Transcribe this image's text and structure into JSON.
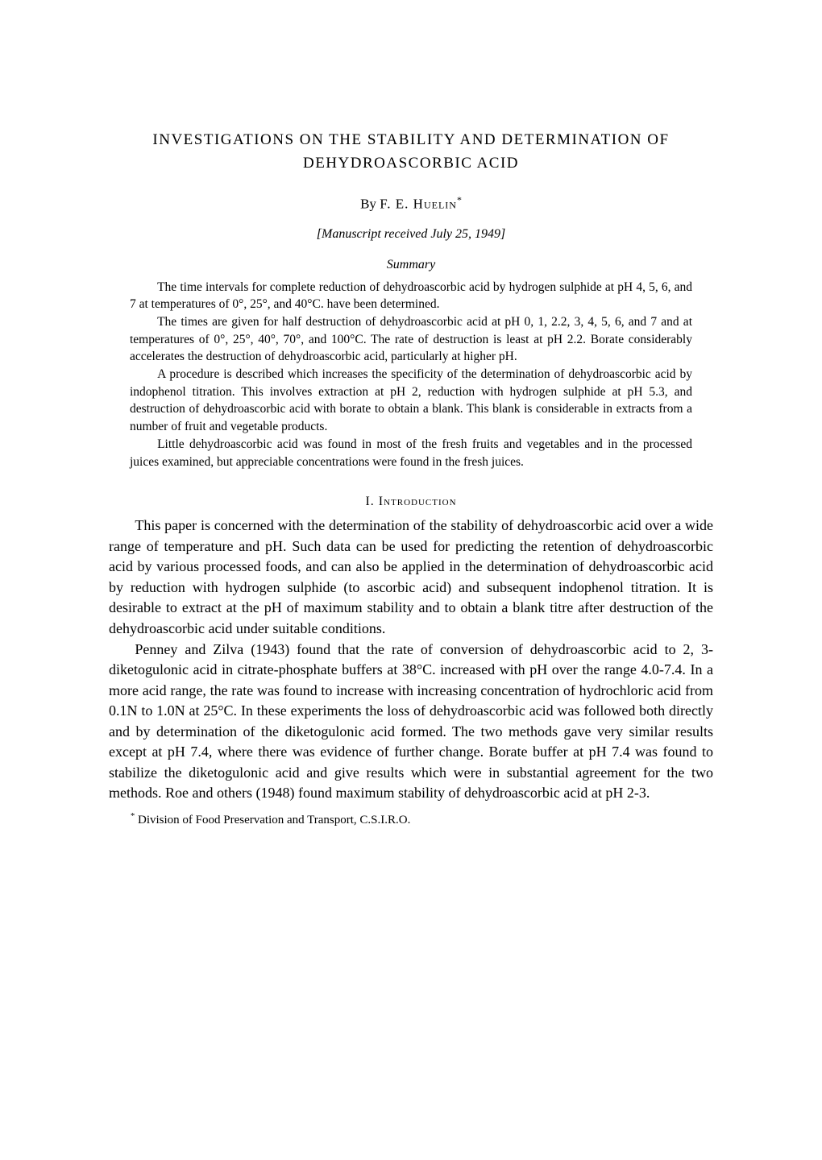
{
  "title": "INVESTIGATIONS ON THE STABILITY AND DETERMINATION OF DEHYDROASCORBIC ACID",
  "author_prefix": "By ",
  "author_name": "F. E. Huelin",
  "author_mark": "*",
  "manuscript": "[Manuscript received July 25, 1949]",
  "summary_heading": "Summary",
  "summary": {
    "p1": "The time intervals for complete reduction of dehydroascorbic acid by hydrogen sulphide at pH 4, 5, 6, and 7 at temperatures of 0°, 25°, and 40°C. have been determined.",
    "p2": "The times are given for half destruction of dehydroascorbic acid at pH 0, 1, 2.2, 3, 4, 5, 6, and 7 and at temperatures of 0°, 25°, 40°, 70°, and 100°C. The rate of destruction is least at pH 2.2. Borate considerably accelerates the destruction of dehydroascorbic acid, particularly at higher pH.",
    "p3": "A procedure is described which increases the specificity of the determination of dehydroascorbic acid by indophenol titration. This involves extraction at pH 2, reduction with hydrogen sulphide at pH 5.3, and destruction of dehydroascorbic acid with borate to obtain a blank. This blank is considerable in extracts from a number of fruit and vegetable products.",
    "p4": "Little dehydroascorbic acid was found in most of the fresh fruits and vegetables and in the processed juices examined, but appreciable concentrations were found in the fresh juices."
  },
  "section1_heading": "I. Introduction",
  "body": {
    "p1": "This paper is concerned with the determination of the stability of dehydroascorbic acid over a wide range of temperature and pH. Such data can be used for predicting the retention of dehydroascorbic acid by various processed foods, and can also be applied in the determination of dehydroascorbic acid by reduction with hydrogen sulphide (to ascorbic acid) and subsequent indophenol titration. It is desirable to extract at the pH of maximum stability and to obtain a blank titre after destruction of the dehydroascorbic acid under suitable conditions.",
    "p2": "Penney and Zilva (1943) found that the rate of conversion of dehydroascorbic acid to 2, 3-diketogulonic acid in citrate-phosphate buffers at 38°C. increased with pH over the range 4.0-7.4. In a more acid range, the rate was found to increase with increasing concentration of hydrochloric acid from 0.1N to 1.0N at 25°C. In these experiments the loss of dehydroascorbic acid was followed both directly and by determination of the diketogulonic acid formed. The two methods gave very similar results except at pH 7.4, where there was evidence of further change. Borate buffer at pH 7.4 was found to stabilize the diketogulonic acid and give results which were in substantial agreement for the two methods. Roe and others (1948) found maximum stability of dehydroascorbic acid at pH 2-3."
  },
  "footnote_mark": "*",
  "footnote": " Division of Food Preservation and Transport, C.S.I.R.O.",
  "colors": {
    "background": "#ffffff",
    "text": "#000000"
  },
  "fonts": {
    "family": "Times New Roman",
    "title_size_pt": 19,
    "body_size_pt": 18,
    "summary_size_pt": 15.5,
    "footnote_size_pt": 15
  }
}
